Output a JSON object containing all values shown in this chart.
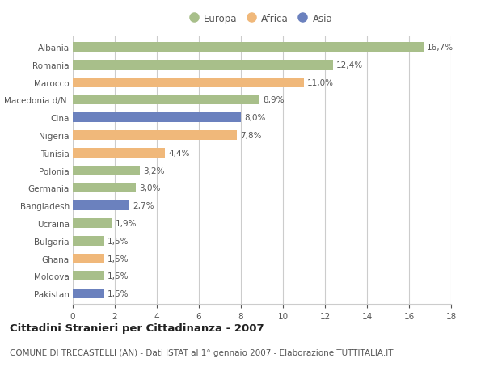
{
  "countries": [
    "Albania",
    "Romania",
    "Marocco",
    "Macedonia d/N.",
    "Cina",
    "Nigeria",
    "Tunisia",
    "Polonia",
    "Germania",
    "Bangladesh",
    "Ucraina",
    "Bulgaria",
    "Ghana",
    "Moldova",
    "Pakistan"
  ],
  "values": [
    16.7,
    12.4,
    11.0,
    8.9,
    8.0,
    7.8,
    4.4,
    3.2,
    3.0,
    2.7,
    1.9,
    1.5,
    1.5,
    1.5,
    1.5
  ],
  "labels": [
    "16,7%",
    "12,4%",
    "11,0%",
    "8,9%",
    "8,0%",
    "7,8%",
    "4,4%",
    "3,2%",
    "3,0%",
    "2,7%",
    "1,9%",
    "1,5%",
    "1,5%",
    "1,5%",
    "1,5%"
  ],
  "colors": [
    "#a8bf8a",
    "#a8bf8a",
    "#f0b87a",
    "#a8bf8a",
    "#6b81be",
    "#f0b87a",
    "#f0b87a",
    "#a8bf8a",
    "#a8bf8a",
    "#6b81be",
    "#a8bf8a",
    "#a8bf8a",
    "#f0b87a",
    "#a8bf8a",
    "#6b81be"
  ],
  "legend_labels": [
    "Europa",
    "Africa",
    "Asia"
  ],
  "legend_colors": [
    "#a8bf8a",
    "#f0b87a",
    "#6b81be"
  ],
  "xlim": [
    0,
    18
  ],
  "xticks": [
    0,
    2,
    4,
    6,
    8,
    10,
    12,
    14,
    16,
    18
  ],
  "title": "Cittadini Stranieri per Cittadinanza - 2007",
  "subtitle": "COMUNE DI TRECASTELLI (AN) - Dati ISTAT al 1° gennaio 2007 - Elaborazione TUTTITALIA.IT",
  "bg_color": "#ffffff",
  "grid_color": "#cccccc",
  "bar_height": 0.55,
  "title_fontsize": 9.5,
  "subtitle_fontsize": 7.5,
  "label_fontsize": 7.5,
  "tick_fontsize": 7.5,
  "value_fontsize": 7.5
}
